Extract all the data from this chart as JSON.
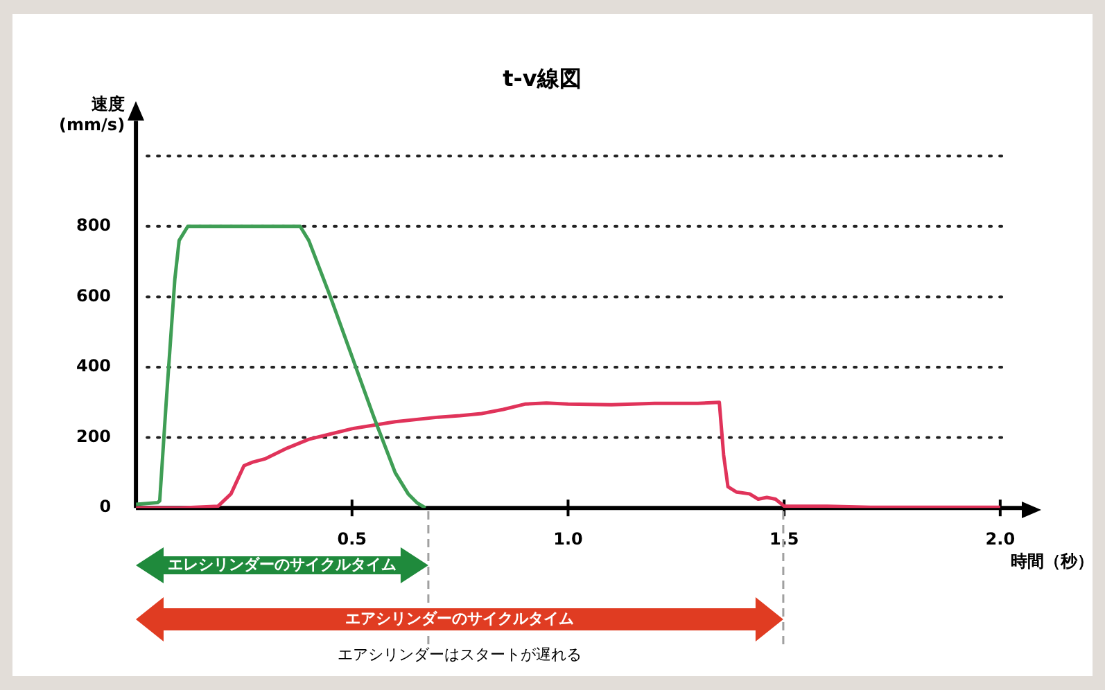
{
  "chart_data": {
    "type": "line",
    "title": "t-v線図",
    "xlabel": "時間（秒）",
    "ylabel": "速度\n(mm/s)",
    "xlim": [
      0,
      2.05
    ],
    "xticks": [
      0.5,
      {
        "value": 1,
        "label": "1.0"
      },
      1.5,
      {
        "value": 2,
        "label": "2.0"
      }
    ],
    "ylim": [
      0,
      1100
    ],
    "yticks": [
      0,
      200,
      400,
      600,
      800,
      {
        "value": 1000,
        "label": null
      }
    ],
    "grid": "y",
    "legend": false,
    "marker": "none",
    "line_style": "solid",
    "series": [
      {
        "color": "#3f9e55",
        "x": [
          0,
          0.05,
          0.055,
          0.07,
          0.09,
          0.1,
          0.12,
          0.15,
          0.3,
          0.38,
          0.4,
          0.45,
          0.5,
          0.55,
          0.6,
          0.63,
          0.65,
          0.67
        ],
        "values": [
          10,
          15,
          20,
          300,
          650,
          760,
          800,
          800,
          800,
          800,
          760,
          600,
          430,
          260,
          100,
          40,
          15,
          0
        ]
      },
      {
        "color": "#e0335a",
        "x": [
          0,
          0.1,
          0.19,
          0.22,
          0.25,
          0.27,
          0.3,
          0.35,
          0.4,
          0.45,
          0.5,
          0.6,
          0.7,
          0.75,
          0.8,
          0.85,
          0.9,
          0.95,
          1.0,
          1.1,
          1.2,
          1.3,
          1.35,
          1.36,
          1.37,
          1.39,
          1.42,
          1.44,
          1.46,
          1.48,
          1.5,
          1.6,
          1.7,
          2.0
        ],
        "values": [
          0,
          0,
          5,
          40,
          120,
          130,
          140,
          170,
          195,
          210,
          225,
          245,
          258,
          262,
          268,
          280,
          295,
          298,
          295,
          293,
          297,
          297,
          300,
          150,
          60,
          45,
          40,
          25,
          30,
          25,
          5,
          5,
          2,
          2
        ]
      }
    ],
    "annotations": [
      "エレシリンダーのサイクルタイム",
      "エアシリンダーのサイクルタイム",
      "エアシリンダーはスタートが遅れる"
    ]
  }
}
